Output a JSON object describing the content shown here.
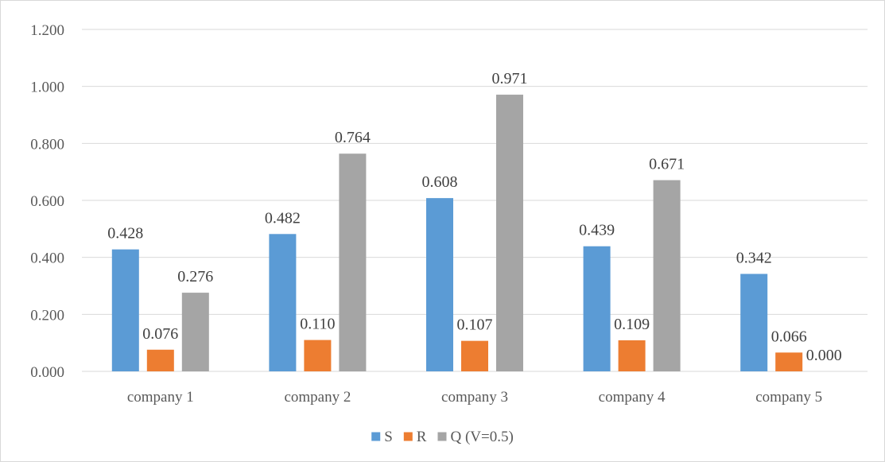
{
  "chart_data": {
    "type": "bar",
    "title": "",
    "xlabel": "",
    "ylabel": "",
    "categories": [
      "company 1",
      "company 2",
      "company 3",
      "company 4",
      "company 5"
    ],
    "series": [
      {
        "name": "S",
        "color": "#5b9bd5",
        "values": [
          0.428,
          0.482,
          0.608,
          0.439,
          0.342
        ],
        "labels": [
          "0.428",
          "0.482",
          "0.608",
          "0.439",
          "0.342"
        ]
      },
      {
        "name": "R",
        "color": "#ed7d31",
        "values": [
          0.076,
          0.11,
          0.107,
          0.109,
          0.066
        ],
        "labels": [
          "0.076",
          "0.110",
          "0.107",
          "0.109",
          "0.066"
        ]
      },
      {
        "name": "Q (V=0.5)",
        "color": "#a5a5a5",
        "values": [
          0.276,
          0.764,
          0.971,
          0.671,
          0.0
        ],
        "labels": [
          "0.276",
          "0.764",
          "0.971",
          "0.671",
          "0.000"
        ]
      }
    ],
    "ylim": [
      0,
      1.2
    ],
    "yticks": [
      "0.000",
      "0.200",
      "0.400",
      "0.600",
      "0.800",
      "1.000",
      "1.200"
    ],
    "grid": true,
    "legend": "bottom-center"
  }
}
